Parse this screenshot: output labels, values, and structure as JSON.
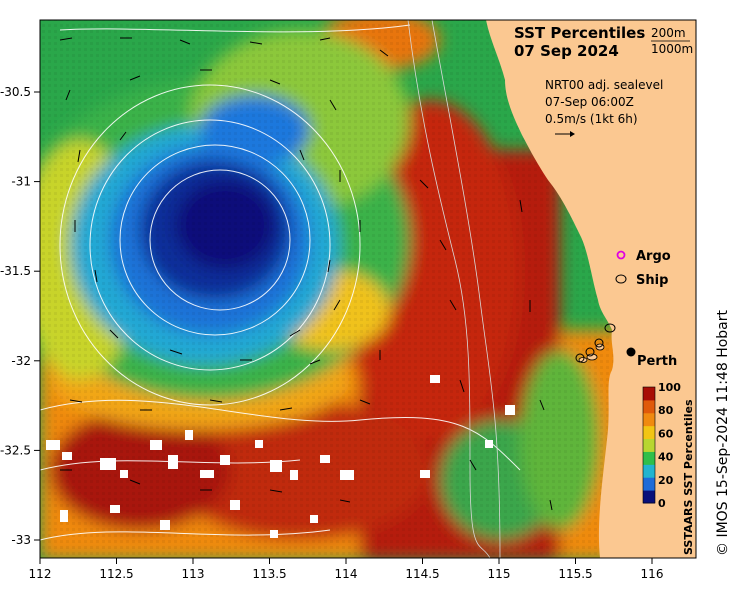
{
  "title": {
    "line1": "SST Percentiles",
    "line2": "07 Sep 2024"
  },
  "depth_legend": [
    "200m",
    "1000m"
  ],
  "sealevel_info": {
    "line1": "NRT00 adj. sealevel",
    "line2": "07-Sep 06:00Z",
    "line3": "0.5m/s (1kt 6h)"
  },
  "markers": {
    "argo_label": "Argo",
    "ship_label": "Ship",
    "city_label": "Perth"
  },
  "axes": {
    "x_ticks": [
      "112",
      "112.5",
      "113",
      "113.5",
      "114",
      "114.5",
      "115",
      "115.5",
      "116"
    ],
    "y_ticks": [
      "-30.5",
      "-31",
      "-31.5",
      "-32",
      "-32.5",
      "-33"
    ]
  },
  "colorbar": {
    "title": "SSTAARS SST Percentiles",
    "ticks": [
      "0",
      "20",
      "40",
      "60",
      "80",
      "100"
    ],
    "colors": [
      "#08107a",
      "#1e6bd8",
      "#22b4cf",
      "#2fbf4a",
      "#b8d630",
      "#f2c514",
      "#f08a10",
      "#e05a0a",
      "#a80d05"
    ]
  },
  "credit": "© IMOS 15-Sep-2024 11:48 Hobart",
  "land_color": "#fbc891"
}
